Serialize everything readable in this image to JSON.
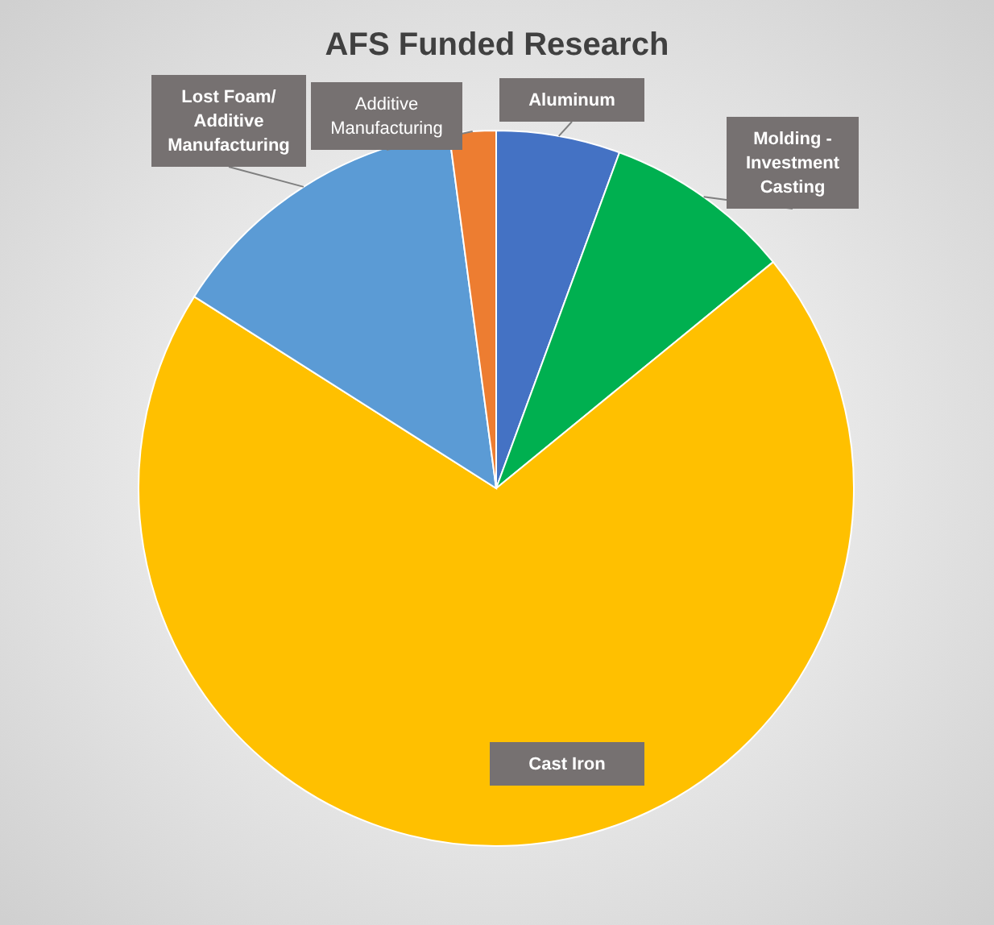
{
  "chart_data": {
    "type": "pie",
    "title": "AFS Funded Research",
    "categories": [
      "Aluminum",
      "Molding - Investment Casting",
      "Cast Iron",
      "Lost Foam/ Additive Manufacturing",
      "Additive Manufacturing"
    ],
    "values": [
      5.6,
      8.5,
      69.9,
      13.9,
      2.1
    ],
    "colors": [
      "#4472c4",
      "#00b050",
      "#ffc000",
      "#5b9bd5",
      "#ed7d31"
    ]
  }
}
